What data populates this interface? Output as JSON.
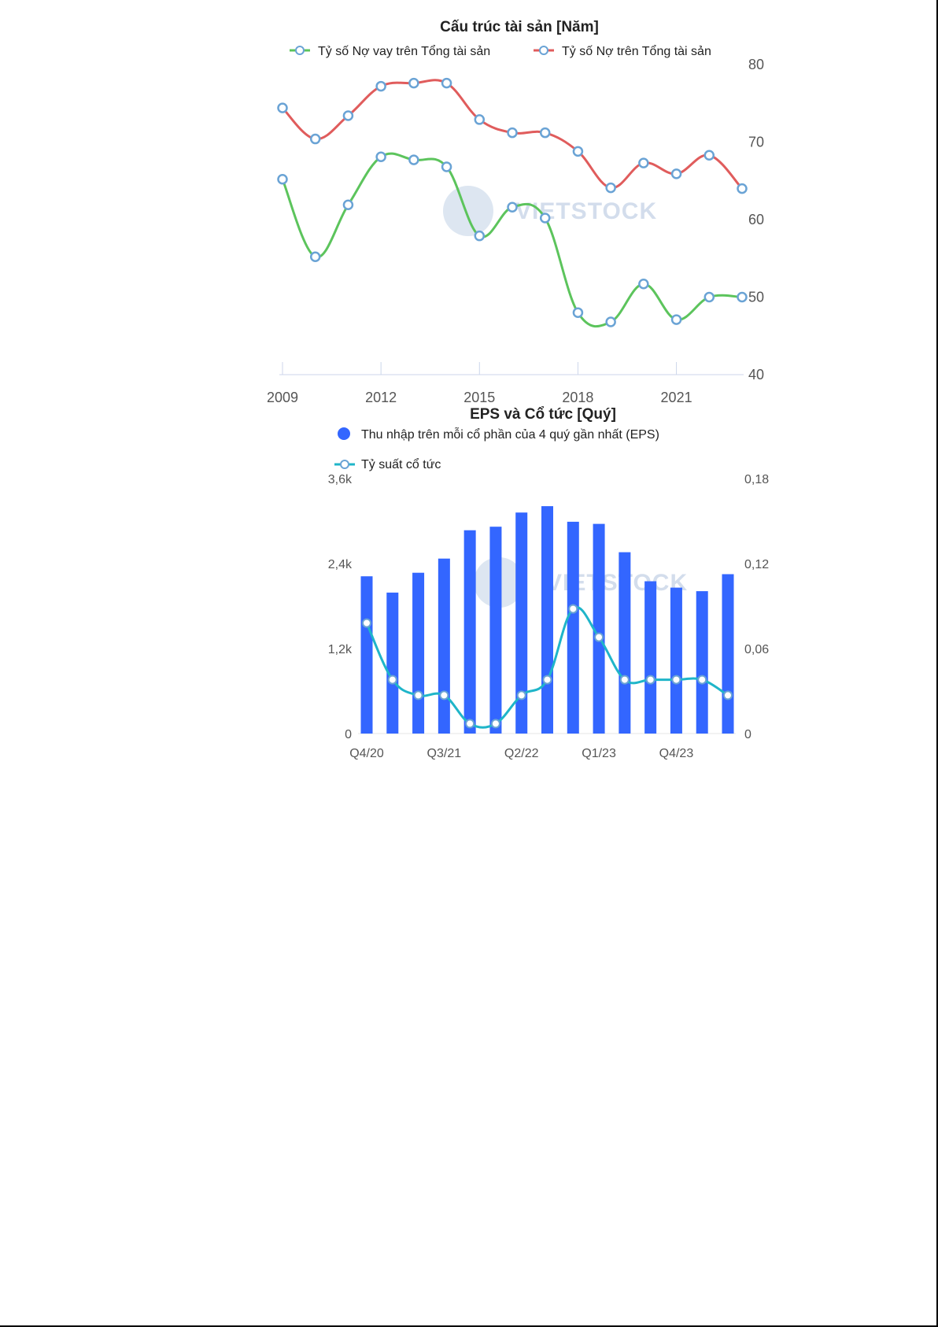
{
  "chart_data": [
    {
      "type": "line",
      "title": "Cấu trúc tài sản [Năm]",
      "x": [
        2009,
        2010,
        2011,
        2012,
        2013,
        2014,
        2015,
        2016,
        2017,
        2018,
        2019,
        2020,
        2021,
        2022,
        2023
      ],
      "x_ticks": [
        "2009",
        "2012",
        "2015",
        "2018",
        "2021"
      ],
      "y_ticks": [
        "80",
        "70",
        "60",
        "50",
        "40"
      ],
      "ylim": [
        40,
        80
      ],
      "y_axis_side": "right",
      "legend_position": "top",
      "series": [
        {
          "name": "Tỷ số Nợ vay trên Tổng tài sản",
          "color": "#5cc45c",
          "values": [
            65.2,
            55.2,
            61.9,
            68.1,
            67.7,
            66.8,
            57.9,
            61.6,
            60.2,
            48.0,
            46.8,
            51.7,
            47.1,
            50.0,
            50.0
          ]
        },
        {
          "name": "Tỷ số Nợ trên Tổng tài sản",
          "color": "#e05c5c",
          "values": [
            74.4,
            70.4,
            73.4,
            77.2,
            77.6,
            77.6,
            72.9,
            71.2,
            71.2,
            68.8,
            64.1,
            67.3,
            65.9,
            68.3,
            64.0
          ]
        }
      ]
    },
    {
      "type": "bar",
      "title": "EPS và Cổ tức [Quý]",
      "categories": [
        "Q4/20",
        "Q1/21",
        "Q2/21",
        "Q3/21",
        "Q4/21",
        "Q1/22",
        "Q2/22",
        "Q3/22",
        "Q4/22",
        "Q1/23",
        "Q2/23",
        "Q3/23",
        "Q4/23",
        "Q1/24",
        "Q2/24"
      ],
      "x_ticks": [
        "Q4/20",
        "Q3/21",
        "Q2/22",
        "Q1/23",
        "Q4/23"
      ],
      "y_left_ticks": [
        "3,6k",
        "2,4k",
        "1,2k",
        "0"
      ],
      "y_right_ticks": [
        "0,18",
        "0,12",
        "0,06",
        "0"
      ],
      "ylim_left": [
        0,
        3600
      ],
      "ylim_right": [
        0,
        0.18
      ],
      "legend_position": "top-left",
      "series": [
        {
          "name": "Thu nhập trên mỗi cổ phần của 4 quý gần nhất (EPS)",
          "type": "bar",
          "axis": "left",
          "color": "#3366ff",
          "values": [
            2220,
            1990,
            2270,
            2470,
            2870,
            2920,
            3120,
            3210,
            2990,
            2960,
            2560,
            2150,
            2060,
            2010,
            2250
          ]
        },
        {
          "name": "Tỷ suất cổ tức",
          "type": "line",
          "axis": "right",
          "color": "#1fb5c9",
          "values": [
            0.078,
            0.038,
            0.027,
            0.027,
            0.007,
            0.007,
            0.027,
            0.038,
            0.088,
            0.068,
            0.038,
            0.038,
            0.038,
            0.038,
            0.027
          ]
        }
      ]
    }
  ],
  "watermark": {
    "text": "VIETSTOCK",
    "colors": {
      "logo": "#9fb6d6",
      "text": "#9fb6d6"
    }
  }
}
